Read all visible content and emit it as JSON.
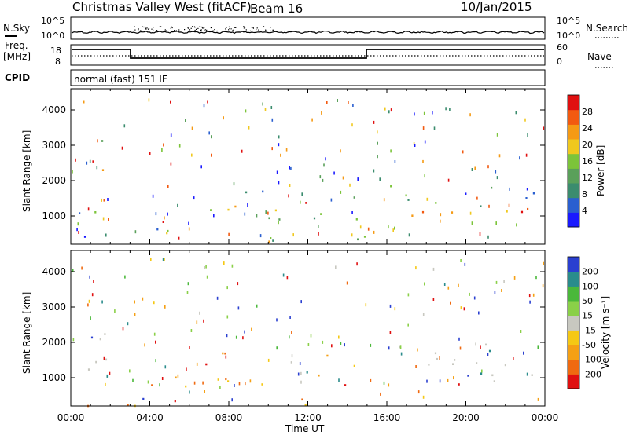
{
  "header": {
    "title": "Christmas Valley West (fitACF)",
    "beam": "Beam 16",
    "date": "10/Jan/2015"
  },
  "nsky_panel": {
    "left_label": "N.Sky",
    "right_label": "N.Search",
    "ticks_left": [
      "10^5",
      "10^0"
    ],
    "ticks_right": [
      "10^5",
      "10^0"
    ]
  },
  "freq_panel": {
    "left_label_1": "Freq.",
    "left_label_2": "[MHz]",
    "right_label": "Nave",
    "ticks_left": [
      "18",
      "8"
    ],
    "ticks_right": [
      "60",
      "0"
    ]
  },
  "cpid_panel": {
    "label": "CPID",
    "mode_text": "normal (fast) 151 IF"
  },
  "colors": {
    "power": [
      "#1a1aff",
      "#2a5fd0",
      "#3b8c6e",
      "#5aa05a",
      "#7cc43a",
      "#f0c81e",
      "#f59a14",
      "#f25a10",
      "#e01010"
    ],
    "velocity": [
      "#2a3fd0",
      "#2a8c8c",
      "#4ab83a",
      "#8ad048",
      "#c8c8c0",
      "#f5c814",
      "#f5a014",
      "#f06a10",
      "#e01010"
    ]
  },
  "chart_data": [
    {
      "type": "heatmap",
      "name": "power",
      "ylabel": "Slant Range [km]",
      "x_ticks": [
        "00:00",
        "04:00",
        "08:00",
        "12:00",
        "16:00",
        "20:00",
        "00:00"
      ],
      "y_ticks": [
        "1000",
        "2000",
        "3000",
        "4000"
      ],
      "ylim": [
        200,
        4600
      ],
      "xlim_hours": [
        0,
        24
      ],
      "colorbar": {
        "label": "Power [dB]",
        "ticks": [
          "4",
          "8",
          "12",
          "16",
          "20",
          "24",
          "28"
        ]
      }
    },
    {
      "type": "heatmap",
      "name": "velocity",
      "ylabel": "Slant Range [km]",
      "x_ticks": [
        "00:00",
        "04:00",
        "08:00",
        "12:00",
        "16:00",
        "20:00",
        "00:00"
      ],
      "xlabel": "Time UT",
      "y_ticks": [
        "1000",
        "2000",
        "3000",
        "4000"
      ],
      "ylim": [
        200,
        4600
      ],
      "xlim_hours": [
        0,
        24
      ],
      "colorbar": {
        "label": "Velocity [m s⁻¹]",
        "ticks": [
          "200",
          "100",
          "50",
          "15",
          "-15",
          "-50",
          "-100",
          "-200"
        ]
      }
    }
  ]
}
